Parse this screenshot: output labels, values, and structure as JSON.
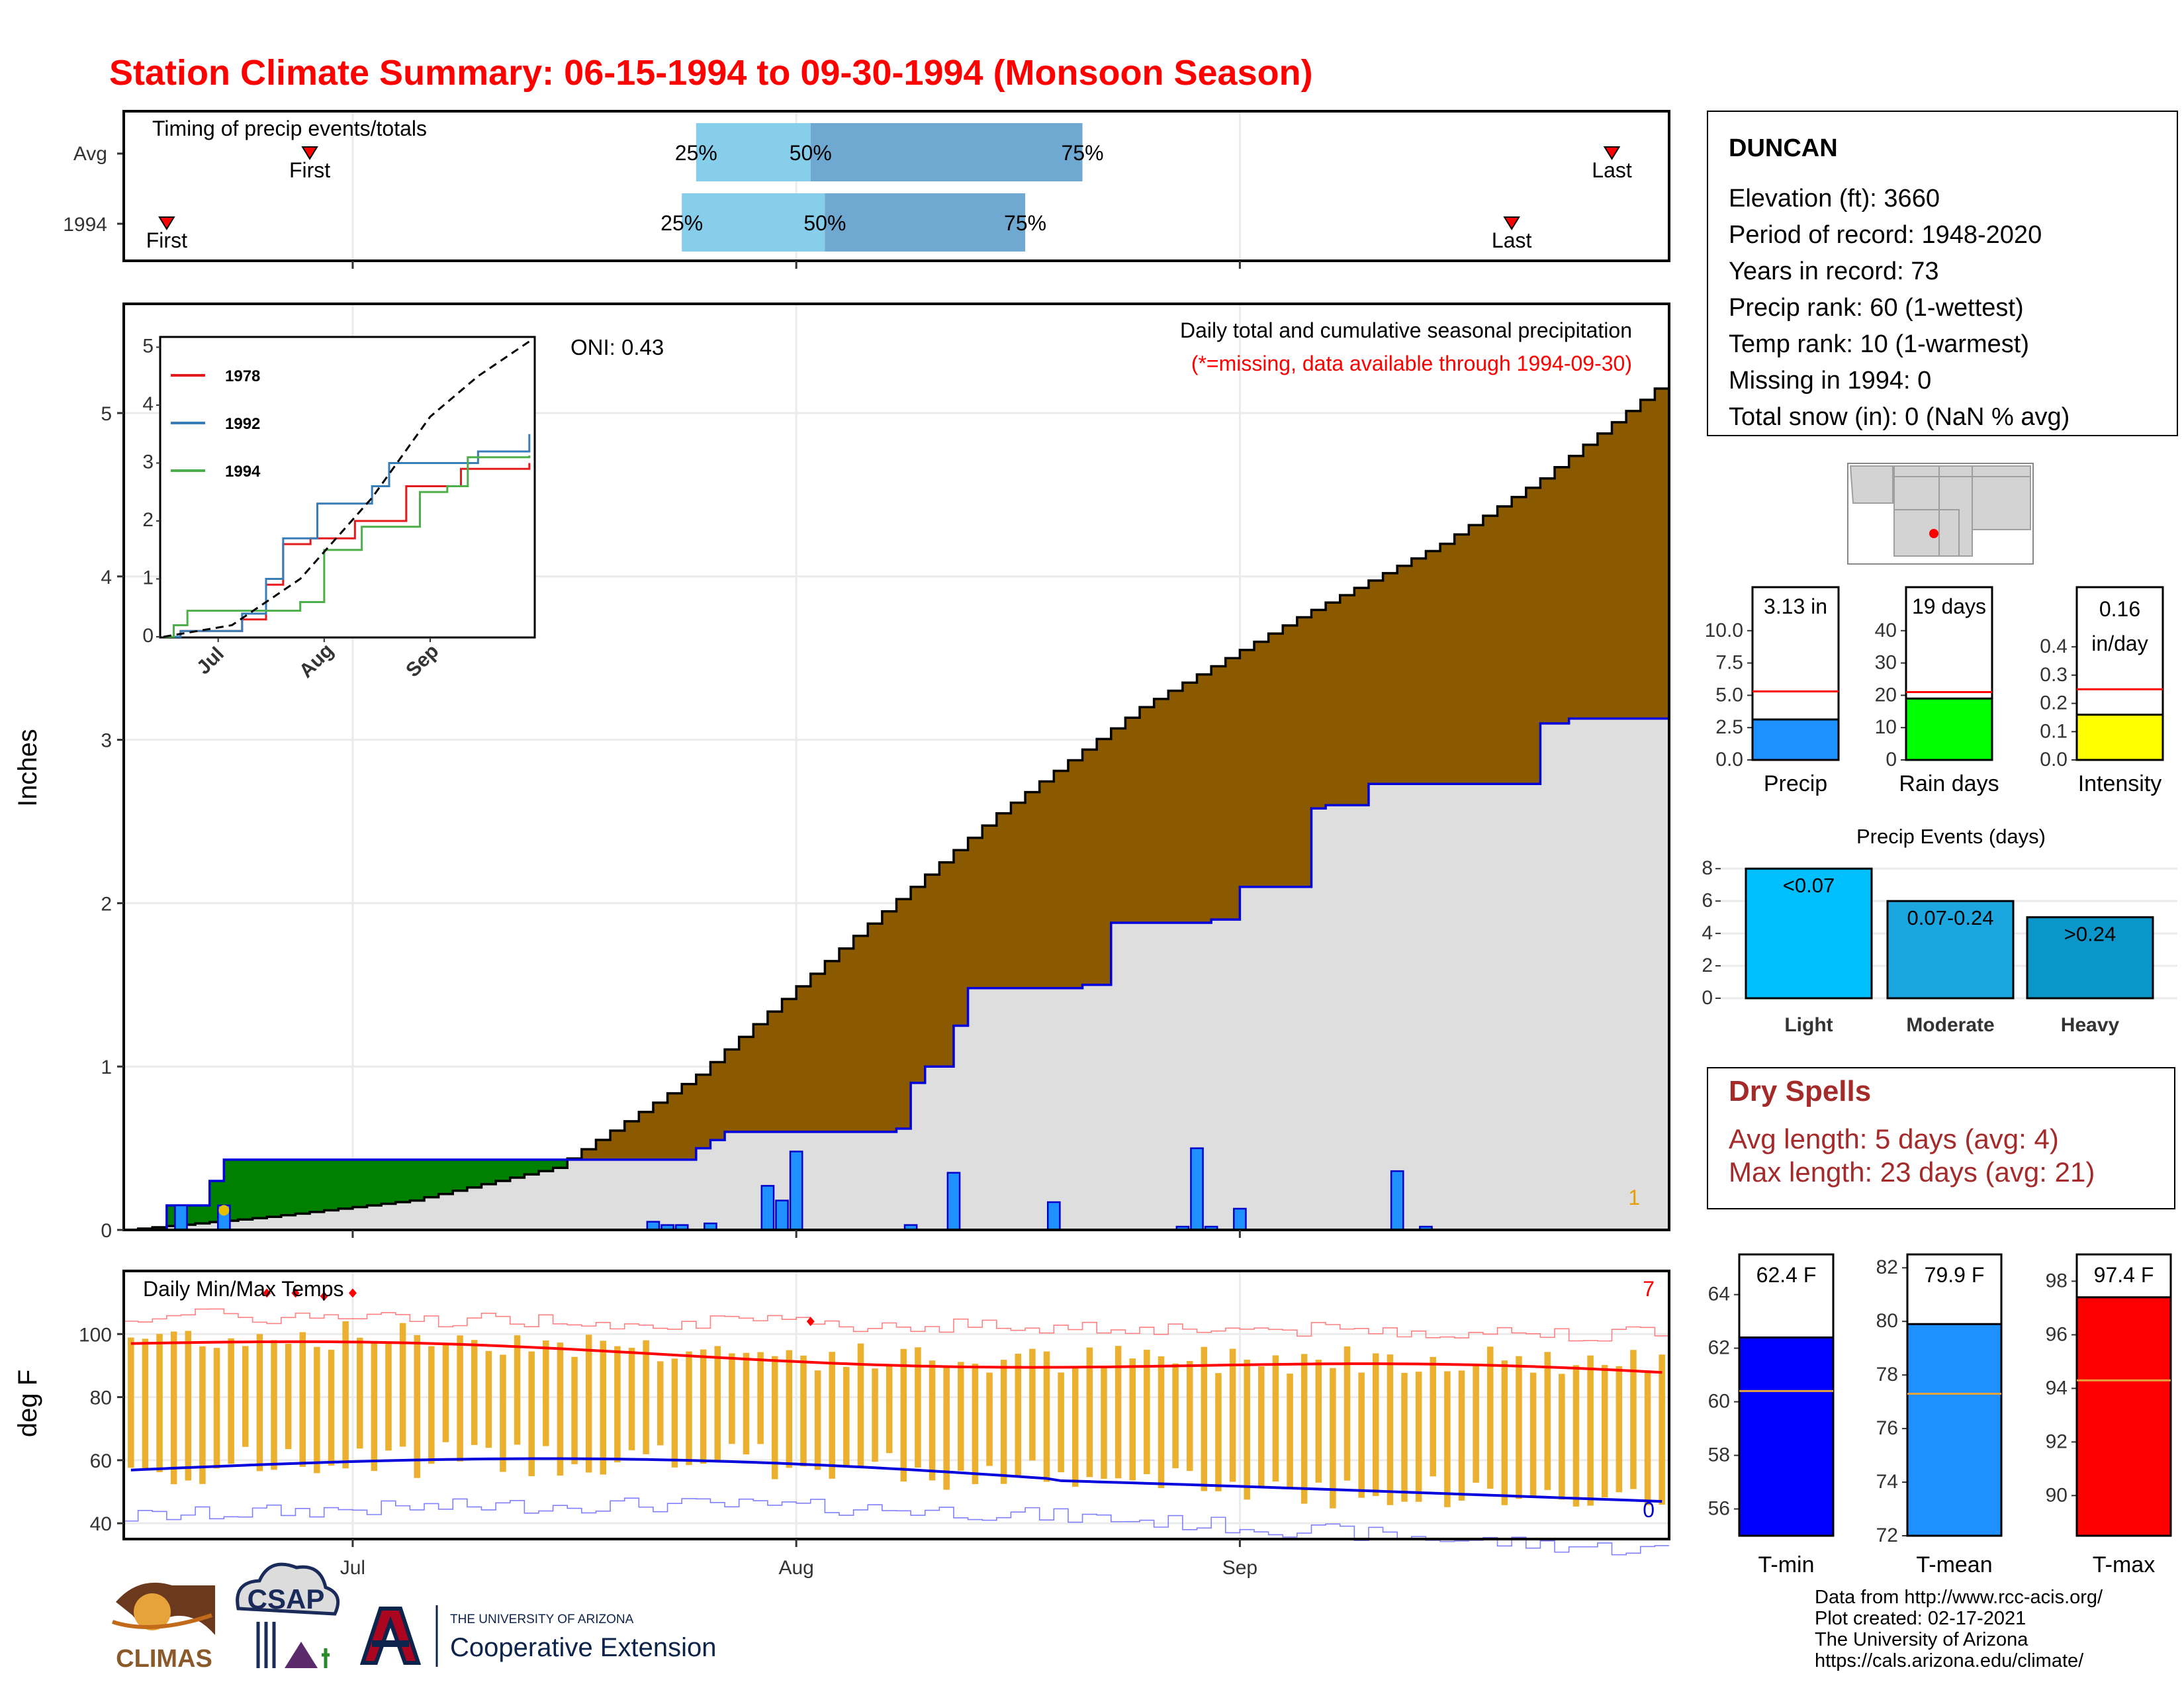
{
  "title": "Station Climate Summary: 06-15-1994 to 09-30-1994 (Monsoon Season)",
  "colors": {
    "title": "#ff0000",
    "fill_above": "#8b5a00",
    "fill_below": "#008000",
    "cum_area": "#dedede",
    "bar": "#1e90ff",
    "temp_bar": "#ebb02e",
    "tmax_line": "#ff0000",
    "tmin_line": "#0000dd"
  },
  "timing": {
    "label": "Timing of precip events/totals",
    "rows": [
      {
        "name": "Avg",
        "first": "First",
        "last": "Last",
        "q25": "25%",
        "q50": "50%",
        "q75": "75%"
      },
      {
        "name": "1994",
        "first": "First",
        "last": "Last",
        "q25": "25%",
        "q50": "50%",
        "q75": "75%"
      }
    ]
  },
  "x_axis_months": [
    "Jul",
    "Aug",
    "Sep"
  ],
  "precip_panel": {
    "ylabel": "Inches",
    "oni": "ONI: 0.43",
    "note1": "Daily total and cumulative seasonal precipitation",
    "note2": "(*=missing, data available through 1994-09-30)",
    "corner_count": "1",
    "y_ticks": [
      "0",
      "1",
      "2",
      "3",
      "4",
      "5"
    ]
  },
  "inset": {
    "y_ticks": [
      "0",
      "1",
      "2",
      "3",
      "4",
      "5"
    ],
    "x_ticks": [
      "Jul",
      "Aug",
      "Sep"
    ],
    "legend": [
      {
        "name": "1978",
        "color": "#e41a1c"
      },
      {
        "name": "1992",
        "color": "#377eb8"
      },
      {
        "name": "1994",
        "color": "#4daf4a"
      }
    ]
  },
  "temp_panel": {
    "ylabel": "deg F",
    "label": "Daily Min/Max Temps",
    "count_high": "7",
    "count_low": "0",
    "y_ticks": [
      "40",
      "60",
      "80",
      "100"
    ]
  },
  "station": {
    "name": "DUNCAN",
    "lines": [
      "Elevation (ft): 3660",
      "Period of record: 1948-2020",
      "Years in record: 73",
      "Precip rank: 60 (1-wettest)",
      "Temp rank: 10 (1-warmest)",
      "Missing in 1994: 0",
      "Total snow (in): 0 (NaN % avg)"
    ]
  },
  "minibars": [
    {
      "label": "Precip",
      "value_text": "3.13 in",
      "value": 3.13,
      "avg": 5.3,
      "ticks": [
        "0.0",
        "2.5",
        "5.0",
        "7.5",
        "10.0"
      ],
      "max": 10.5,
      "color": "#1e90ff"
    },
    {
      "label": "Rain days",
      "value_text": "19 days",
      "value": 19,
      "avg": 21,
      "ticks": [
        "0",
        "10",
        "20",
        "30",
        "40"
      ],
      "max": 42,
      "color": "#00ff00"
    },
    {
      "label": "Intensity",
      "value_text1": "0.16",
      "value_text2": "in/day",
      "value": 0.16,
      "avg": 0.25,
      "ticks": [
        "0.0",
        "0.1",
        "0.2",
        "0.3",
        "0.4"
      ],
      "max": 0.48,
      "color": "#ffff00"
    }
  ],
  "precip_events": {
    "title": "Precip Events (days)",
    "y_ticks": [
      "0",
      "2",
      "4",
      "6",
      "8"
    ],
    "bars": [
      {
        "label": "Light",
        "value_text": "<0.07",
        "value": 8,
        "color": "#00bfff"
      },
      {
        "label": "Moderate",
        "value_text": "0.07-0.24",
        "value": 6,
        "color": "#1ca6e0"
      },
      {
        "label": "Heavy",
        "value_text": ">0.24",
        "value": 5,
        "color": "#0a96c8"
      }
    ]
  },
  "dry_spells": {
    "title": "Dry Spells",
    "avg_line": "Avg length: 5 days (avg: 4)",
    "max_line": "Max length: 23 days (avg: 21)"
  },
  "temp_bars": [
    {
      "label": "T-min",
      "value_text": "62.4 F",
      "value": 62.4,
      "avg": 60.4,
      "ticks": [
        "56",
        "58",
        "60",
        "62",
        "64"
      ],
      "min": 55,
      "max": 65.5,
      "color": "#0000ff"
    },
    {
      "label": "T-mean",
      "value_text": "79.9 F",
      "value": 79.9,
      "avg": 77.3,
      "ticks": [
        "72",
        "74",
        "76",
        "78",
        "80",
        "82"
      ],
      "min": 72,
      "max": 82.5,
      "color": "#1e90ff"
    },
    {
      "label": "T-max",
      "value_text": "97.4 F",
      "value": 97.4,
      "avg": 94.3,
      "ticks": [
        "90",
        "92",
        "94",
        "96",
        "98"
      ],
      "min": 88.5,
      "max": 99,
      "color": "#ff0000"
    }
  ],
  "footer": [
    "Data from http://www.rcc-acis.org/",
    "Plot created: 02-17-2021",
    "The University of Arizona",
    "https://cals.arizona.edu/climate/"
  ],
  "logos": {
    "climas": "CLIMAS",
    "csap": "CSAP",
    "ua_small": "THE UNIVERSITY OF ARIZONA",
    "ua_big": "Cooperative Extension"
  },
  "chart_data": [
    {
      "type": "area",
      "title": "Daily total and cumulative seasonal precipitation",
      "ylabel": "Inches",
      "x_range": [
        "1994-06-15",
        "1994-09-30"
      ],
      "ylim": [
        0,
        5.6
      ],
      "cumulative_1994": [
        {
          "x": "1994-06-18",
          "y": 0.15
        },
        {
          "x": "1994-06-21",
          "y": 0.3
        },
        {
          "x": "1994-06-22",
          "y": 0.43
        },
        {
          "x": "1994-07-24",
          "y": 0.43
        },
        {
          "x": "1994-07-25",
          "y": 0.5
        },
        {
          "x": "1994-07-26",
          "y": 0.55
        },
        {
          "x": "1994-07-27",
          "y": 0.6
        },
        {
          "x": "1994-08-08",
          "y": 0.62
        },
        {
          "x": "1994-08-09",
          "y": 0.9
        },
        {
          "x": "1994-08-10",
          "y": 1.0
        },
        {
          "x": "1994-08-12",
          "y": 1.25
        },
        {
          "x": "1994-08-13",
          "y": 1.48
        },
        {
          "x": "1994-08-21",
          "y": 1.5
        },
        {
          "x": "1994-08-23",
          "y": 1.88
        },
        {
          "x": "1994-08-30",
          "y": 1.9
        },
        {
          "x": "1994-09-01",
          "y": 2.1
        },
        {
          "x": "1994-09-06",
          "y": 2.58
        },
        {
          "x": "1994-09-07",
          "y": 2.6
        },
        {
          "x": "1994-09-10",
          "y": 2.73
        },
        {
          "x": "1994-09-22",
          "y": 3.1
        },
        {
          "x": "1994-09-24",
          "y": 3.13
        },
        {
          "x": "1994-09-30",
          "y": 3.13
        }
      ],
      "cumulative_avg": [
        {
          "x": "1994-06-15",
          "y": 0.0
        },
        {
          "x": "1994-06-25",
          "y": 0.08
        },
        {
          "x": "1994-07-05",
          "y": 0.18
        },
        {
          "x": "1994-07-15",
          "y": 0.38
        },
        {
          "x": "1994-07-25",
          "y": 0.95
        },
        {
          "x": "1994-08-05",
          "y": 1.8
        },
        {
          "x": "1994-08-15",
          "y": 2.55
        },
        {
          "x": "1994-08-25",
          "y": 3.2
        },
        {
          "x": "1994-09-05",
          "y": 3.75
        },
        {
          "x": "1994-09-15",
          "y": 4.2
        },
        {
          "x": "1994-09-22",
          "y": 4.6
        },
        {
          "x": "1994-09-30",
          "y": 5.15
        }
      ],
      "daily_1994": [
        {
          "x": "1994-06-19",
          "y": 0.15
        },
        {
          "x": "1994-06-22",
          "y": 0.15
        },
        {
          "x": "1994-07-22",
          "y": 0.05
        },
        {
          "x": "1994-07-23",
          "y": 0.03
        },
        {
          "x": "1994-07-24",
          "y": 0.03
        },
        {
          "x": "1994-07-26",
          "y": 0.04
        },
        {
          "x": "1994-07-30",
          "y": 0.27
        },
        {
          "x": "1994-07-31",
          "y": 0.18
        },
        {
          "x": "1994-08-01",
          "y": 0.48
        },
        {
          "x": "1994-08-09",
          "y": 0.03
        },
        {
          "x": "1994-08-12",
          "y": 0.35
        },
        {
          "x": "1994-08-19",
          "y": 0.17
        },
        {
          "x": "1994-08-28",
          "y": 0.02
        },
        {
          "x": "1994-08-29",
          "y": 0.5
        },
        {
          "x": "1994-08-30",
          "y": 0.02
        },
        {
          "x": "1994-09-01",
          "y": 0.13
        },
        {
          "x": "1994-09-12",
          "y": 0.36
        },
        {
          "x": "1994-09-14",
          "y": 0.02
        }
      ]
    },
    {
      "type": "line",
      "title": "",
      "xlabel": "",
      "ylabel": "",
      "ylim": [
        0,
        5.2
      ],
      "series": [
        {
          "name": "1978",
          "values": [
            {
              "x": "06-20",
              "y": 0.1
            },
            {
              "x": "07-08",
              "y": 0.3
            },
            {
              "x": "07-15",
              "y": 0.9
            },
            {
              "x": "07-20",
              "y": 1.6
            },
            {
              "x": "07-28",
              "y": 1.7
            },
            {
              "x": "08-10",
              "y": 2.0
            },
            {
              "x": "08-25",
              "y": 2.6
            },
            {
              "x": "09-10",
              "y": 2.9
            },
            {
              "x": "09-30",
              "y": 3.0
            }
          ]
        },
        {
          "name": "1992",
          "values": [
            {
              "x": "06-20",
              "y": 0.1
            },
            {
              "x": "07-08",
              "y": 0.4
            },
            {
              "x": "07-15",
              "y": 1.0
            },
            {
              "x": "07-20",
              "y": 1.7
            },
            {
              "x": "07-30",
              "y": 2.3
            },
            {
              "x": "08-15",
              "y": 2.6
            },
            {
              "x": "08-20",
              "y": 3.0
            },
            {
              "x": "09-15",
              "y": 3.2
            },
            {
              "x": "09-30",
              "y": 3.5
            }
          ]
        },
        {
          "name": "1994",
          "values": [
            {
              "x": "06-18",
              "y": 0.2
            },
            {
              "x": "06-22",
              "y": 0.45
            },
            {
              "x": "07-25",
              "y": 0.6
            },
            {
              "x": "08-01",
              "y": 1.5
            },
            {
              "x": "08-12",
              "y": 1.9
            },
            {
              "x": "08-29",
              "y": 2.5
            },
            {
              "x": "09-06",
              "y": 2.6
            },
            {
              "x": "09-12",
              "y": 3.1
            },
            {
              "x": "09-30",
              "y": 3.13
            }
          ]
        },
        {
          "name": "",
          "values": [
            {
              "x": "06-15",
              "y": 0.0
            },
            {
              "x": "07-05",
              "y": 0.2
            },
            {
              "x": "07-25",
              "y": 1.0
            },
            {
              "x": "08-15",
              "y": 2.4
            },
            {
              "x": "09-01",
              "y": 3.8
            },
            {
              "x": "09-15",
              "y": 4.5
            },
            {
              "x": "09-30",
              "y": 5.1
            }
          ]
        }
      ]
    },
    {
      "type": "bar",
      "title": "Daily Min/Max Temps",
      "ylabel": "deg F",
      "ylim": [
        35,
        120
      ],
      "avg_max_start_end": [
        97,
        87
      ],
      "avg_min_start_end": [
        56,
        48
      ],
      "record_max_start_end": [
        106,
        100
      ],
      "record_min_start_end": [
        42,
        36
      ]
    }
  ]
}
